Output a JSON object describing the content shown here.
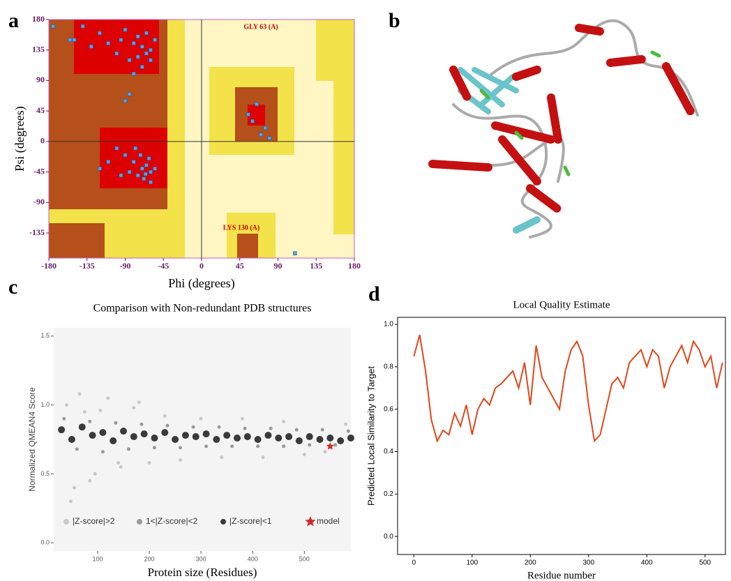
{
  "panel_labels": [
    "a",
    "b",
    "c",
    "d"
  ],
  "chart_data": [
    {
      "type": "scatter",
      "xlabel": "Phi (degrees)",
      "ylabel": "Psi (degrees)",
      "annotations": [
        "GLY 63 (A)",
        "LYS 130 (A)"
      ],
      "xlim": [
        -180,
        180
      ],
      "ylim": [
        -172,
        180
      ],
      "xticks": [
        -180,
        -135,
        -90,
        -45,
        0,
        45,
        90,
        135,
        180
      ],
      "yticks": [
        180,
        135,
        90,
        45,
        0,
        -45,
        -90,
        -135
      ],
      "grid": false,
      "series": [
        {
          "color": "#5aa0e6",
          "x": [
            -140,
            -120,
            -95,
            -80,
            -70,
            -65,
            -75,
            -60,
            -85,
            -100,
            -55,
            -65,
            -90,
            -130,
            -150,
            -70,
            -60,
            -80,
            -75,
            -110,
            -70,
            -65,
            -60,
            -75,
            -80,
            -62,
            -90,
            -100,
            -68,
            -55,
            -85,
            -72,
            -110,
            -60,
            -95,
            -120,
            -78,
            -66,
            55,
            60,
            70,
            80,
            65,
            75,
            -175,
            -90,
            -85,
            110,
            -155
          ],
          "values": [
            170,
            160,
            150,
            145,
            140,
            130,
            125,
            135,
            120,
            130,
            150,
            160,
            165,
            140,
            150,
            110,
            120,
            100,
            155,
            145,
            -40,
            -35,
            -45,
            -50,
            -30,
            -25,
            -20,
            -10,
            -55,
            -40,
            -45,
            -20,
            -30,
            -60,
            -50,
            -40,
            -10,
            -48,
            40,
            30,
            10,
            5,
            55,
            20,
            170,
            60,
            70,
            -165,
            150
          ]
        }
      ]
    },
    {
      "type": "scatter",
      "title": "Comparison with Non-redundant PDB structures",
      "xlabel": "Protein size (Residues)",
      "ylabel": "Normalized QMEAN4 Score",
      "xlim": [
        15,
        590
      ],
      "ylim": [
        -0.06,
        1.56
      ],
      "xticks": [
        100,
        200,
        300,
        400,
        500
      ],
      "yticks": [
        {
          "value": 0,
          "label": "0.0"
        },
        {
          "value": 0.5,
          "label": "0.5"
        },
        {
          "value": 1,
          "label": "1.0"
        },
        {
          "value": 1.5,
          "label": "1.5"
        }
      ],
      "grid": false,
      "legend": "bottom",
      "series": [
        {
          "name": "|Z-score|>2",
          "color": "#c8c8c8",
          "x": [
            40,
            55,
            75,
            95,
            120,
            145,
            170,
            200,
            230,
            260,
            300,
            340,
            380,
            420,
            460,
            500,
            540,
            580,
            48,
            65,
            85,
            105,
            140,
            180
          ],
          "values": [
            1.0,
            0.4,
            0.95,
            0.5,
            1.05,
            0.55,
            0.98,
            0.58,
            0.92,
            0.6,
            0.9,
            0.62,
            0.9,
            0.62,
            0.88,
            0.64,
            0.66,
            0.86,
            0.3,
            1.08,
            0.45,
            0.96,
            0.58,
            1.02
          ]
        },
        {
          "name": "1<|Z-score|<2",
          "color": "#999999",
          "x": [
            35,
            60,
            85,
            110,
            135,
            160,
            185,
            210,
            235,
            260,
            285,
            310,
            335,
            360,
            385,
            410,
            435,
            460,
            485,
            510,
            535,
            560,
            585
          ],
          "values": [
            0.9,
            0.68,
            0.88,
            0.66,
            0.87,
            0.68,
            0.86,
            0.69,
            0.85,
            0.69,
            0.84,
            0.7,
            0.84,
            0.7,
            0.83,
            0.7,
            0.83,
            0.7,
            0.82,
            0.71,
            0.82,
            0.71,
            0.81
          ]
        },
        {
          "name": "|Z-score|<1",
          "color": "#3a3a3a",
          "x": [
            30,
            50,
            70,
            90,
            110,
            130,
            150,
            170,
            190,
            210,
            230,
            250,
            270,
            290,
            310,
            330,
            350,
            370,
            390,
            410,
            430,
            450,
            470,
            490,
            510,
            530,
            550,
            570,
            590
          ],
          "values": [
            0.82,
            0.75,
            0.84,
            0.78,
            0.8,
            0.74,
            0.81,
            0.77,
            0.79,
            0.76,
            0.8,
            0.75,
            0.78,
            0.77,
            0.79,
            0.75,
            0.78,
            0.76,
            0.77,
            0.75,
            0.78,
            0.76,
            0.77,
            0.74,
            0.77,
            0.75,
            0.76,
            0.74,
            0.76
          ]
        },
        {
          "name": "model",
          "color": "#d62728",
          "marker": "star",
          "x": [
            550
          ],
          "values": [
            0.7
          ]
        }
      ]
    },
    {
      "type": "line",
      "title": "Local Quality Estimate",
      "xlabel": "Residue number",
      "ylabel": "Predicted Local Similarity to Target",
      "xlim": [
        -28,
        535
      ],
      "ylim": [
        -0.085,
        1.033
      ],
      "xticks": [
        0,
        100,
        200,
        300,
        400,
        500
      ],
      "yticks": [
        {
          "value": 0,
          "label": "0.0"
        },
        {
          "value": 0.2,
          "label": "0.2"
        },
        {
          "value": 0.4,
          "label": "0.4"
        },
        {
          "value": 0.6,
          "label": "0.6"
        },
        {
          "value": 0.8,
          "label": "0.8"
        },
        {
          "value": 1,
          "label": "1.0"
        }
      ],
      "grid": false,
      "color": "#e2461a",
      "x": [
        0,
        10,
        20,
        30,
        40,
        50,
        60,
        70,
        80,
        90,
        100,
        110,
        120,
        130,
        140,
        150,
        160,
        170,
        180,
        190,
        200,
        210,
        220,
        230,
        240,
        250,
        260,
        270,
        280,
        290,
        300,
        310,
        320,
        330,
        340,
        350,
        360,
        370,
        380,
        390,
        400,
        410,
        420,
        430,
        440,
        450,
        460,
        470,
        480,
        490,
        500,
        510,
        520,
        530
      ],
      "values": [
        0.85,
        0.95,
        0.78,
        0.55,
        0.45,
        0.5,
        0.48,
        0.58,
        0.52,
        0.62,
        0.48,
        0.6,
        0.65,
        0.62,
        0.7,
        0.72,
        0.75,
        0.78,
        0.7,
        0.82,
        0.62,
        0.9,
        0.75,
        0.7,
        0.65,
        0.6,
        0.78,
        0.88,
        0.92,
        0.85,
        0.62,
        0.45,
        0.48,
        0.6,
        0.72,
        0.75,
        0.7,
        0.82,
        0.85,
        0.88,
        0.8,
        0.88,
        0.85,
        0.7,
        0.8,
        0.85,
        0.9,
        0.82,
        0.92,
        0.88,
        0.8,
        0.85,
        0.7,
        0.82
      ]
    }
  ]
}
